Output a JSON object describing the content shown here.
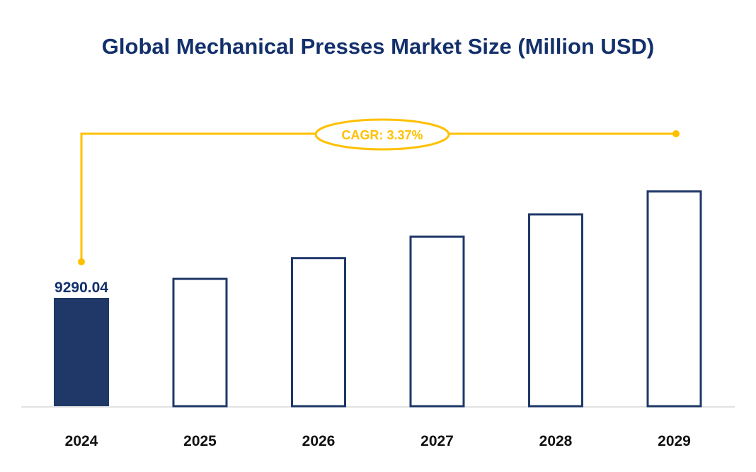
{
  "chart_data": {
    "type": "bar",
    "title": "Global Mechanical Presses Market Size (Million USD)",
    "categories": [
      "2024",
      "2025",
      "2026",
      "2027",
      "2028",
      "2029"
    ],
    "values": [
      9290.04,
      9603.1,
      9926.8,
      10261.4,
      10607.2,
      10964.7
    ],
    "data_labels": {
      "2024": "9290.04"
    },
    "annotation": "CAGR: 3.37%",
    "xlabel": "",
    "ylabel": "",
    "grid": false,
    "legend": "none",
    "colors": {
      "bar_fill_first": "#1f3868",
      "bar_outline": "#1f3868",
      "annotation": "#ffc000",
      "title": "#13306b",
      "axis": "#d9d9d9"
    }
  }
}
